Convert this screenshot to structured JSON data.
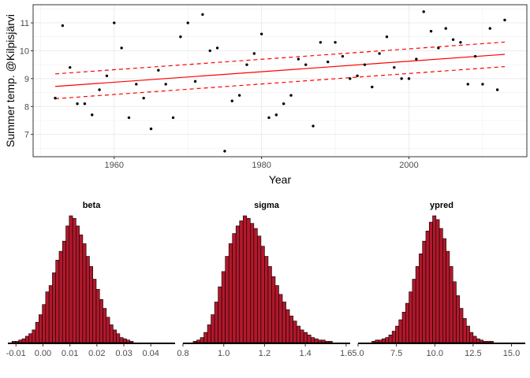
{
  "colors": {
    "fit_line": "#ff0000",
    "points": "#000000",
    "bars_fill": "#b2182b",
    "bars_stroke": "#000000",
    "grid": "#ebebeb",
    "panel_border": "#333333"
  },
  "chart_data": [
    {
      "type": "scatter",
      "xlabel": "Year",
      "ylabel": "Summer temp. @Kilpisjärvi",
      "xlim": [
        1949,
        2016
      ],
      "ylim": [
        6.2,
        11.65
      ],
      "xticks": [
        1960,
        1980,
        2000
      ],
      "yticks": [
        7,
        8,
        9,
        10,
        11
      ],
      "grid": true,
      "points": [
        [
          1952,
          8.3
        ],
        [
          1953,
          10.9
        ],
        [
          1954,
          9.4
        ],
        [
          1955,
          8.1
        ],
        [
          1956,
          8.1
        ],
        [
          1957,
          7.7
        ],
        [
          1958,
          8.6
        ],
        [
          1959,
          9.1
        ],
        [
          1960,
          11.0
        ],
        [
          1961,
          10.1
        ],
        [
          1962,
          7.6
        ],
        [
          1963,
          8.8
        ],
        [
          1964,
          8.3
        ],
        [
          1965,
          7.2
        ],
        [
          1966,
          9.3
        ],
        [
          1967,
          8.8
        ],
        [
          1968,
          7.6
        ],
        [
          1969,
          10.5
        ],
        [
          1970,
          11.0
        ],
        [
          1971,
          8.9
        ],
        [
          1972,
          11.3
        ],
        [
          1973,
          10.0
        ],
        [
          1974,
          10.1
        ],
        [
          1975,
          6.4
        ],
        [
          1976,
          8.2
        ],
        [
          1977,
          8.4
        ],
        [
          1978,
          9.5
        ],
        [
          1979,
          9.9
        ],
        [
          1980,
          10.6
        ],
        [
          1981,
          7.6
        ],
        [
          1982,
          7.7
        ],
        [
          1983,
          8.1
        ],
        [
          1984,
          8.4
        ],
        [
          1985,
          9.7
        ],
        [
          1986,
          9.5
        ],
        [
          1987,
          7.3
        ],
        [
          1988,
          10.3
        ],
        [
          1989,
          9.6
        ],
        [
          1990,
          10.3
        ],
        [
          1991,
          9.8
        ],
        [
          1992,
          9.0
        ],
        [
          1993,
          9.1
        ],
        [
          1994,
          9.5
        ],
        [
          1995,
          8.7
        ],
        [
          1996,
          9.9
        ],
        [
          1997,
          10.5
        ],
        [
          1998,
          9.4
        ],
        [
          1999,
          9.0
        ],
        [
          2000,
          9.0
        ],
        [
          2001,
          9.7
        ],
        [
          2002,
          11.4
        ],
        [
          2003,
          10.7
        ],
        [
          2004,
          10.1
        ],
        [
          2005,
          10.8
        ],
        [
          2006,
          10.4
        ],
        [
          2007,
          10.3
        ],
        [
          2008,
          8.8
        ],
        [
          2009,
          9.8
        ],
        [
          2010,
          8.8
        ],
        [
          2011,
          10.8
        ],
        [
          2012,
          8.6
        ],
        [
          2013,
          11.1
        ]
      ],
      "fit_line": {
        "x": [
          1952,
          2013
        ],
        "y": [
          8.72,
          9.87
        ]
      },
      "band_lower": {
        "x": [
          1952,
          2013
        ],
        "y": [
          8.28,
          9.43
        ]
      },
      "band_upper": {
        "x": [
          1952,
          2013
        ],
        "y": [
          9.17,
          10.31
        ]
      }
    },
    {
      "type": "bar",
      "title": "beta",
      "xlim": [
        -0.013,
        0.049
      ],
      "xticks": [
        -0.01,
        0.0,
        0.01,
        0.02,
        0.03,
        0.04
      ],
      "xtick_labels": [
        "-0.01",
        "0.00",
        "0.01",
        "0.02",
        "0.03",
        "0.04"
      ],
      "bin_start": -0.0115,
      "bin_width": 0.00125,
      "counts": [
        1,
        1,
        2,
        3,
        5,
        7,
        10,
        16,
        22,
        30,
        40,
        45,
        55,
        65,
        72,
        80,
        92,
        100,
        98,
        92,
        85,
        78,
        68,
        60,
        50,
        42,
        34,
        27,
        20,
        14,
        10,
        7,
        4,
        3,
        2,
        1
      ]
    },
    {
      "type": "bar",
      "title": "sigma",
      "xlim": [
        0.8,
        1.62
      ],
      "xticks": [
        0.8,
        1.0,
        1.2,
        1.4,
        1.6
      ],
      "xtick_labels": [
        "0.8",
        "1.0",
        "1.2",
        "1.4",
        "1.6"
      ],
      "bin_start": 0.85,
      "bin_width": 0.0175,
      "counts": [
        1,
        2,
        4,
        8,
        14,
        22,
        32,
        44,
        56,
        68,
        78,
        86,
        92,
        96,
        100,
        98,
        94,
        90,
        84,
        76,
        68,
        60,
        52,
        45,
        38,
        32,
        26,
        21,
        17,
        13,
        10,
        8,
        6,
        4,
        3,
        2,
        2,
        1,
        1
      ]
    },
    {
      "type": "bar",
      "title": "ypred",
      "xlim": [
        5.0,
        15.9
      ],
      "xticks": [
        5.0,
        7.5,
        10.0,
        12.5,
        15.0
      ],
      "xtick_labels": [
        "5.0",
        "7.5",
        "10.0",
        "12.5",
        "15.0"
      ],
      "bin_start": 5.9,
      "bin_width": 0.22,
      "counts": [
        1,
        2,
        2,
        3,
        4,
        6,
        9,
        13,
        18,
        24,
        31,
        40,
        50,
        60,
        70,
        80,
        88,
        95,
        100,
        97,
        90,
        82,
        72,
        60,
        48,
        37,
        27,
        19,
        13,
        8,
        5,
        3,
        2,
        1,
        1,
        1
      ]
    }
  ]
}
